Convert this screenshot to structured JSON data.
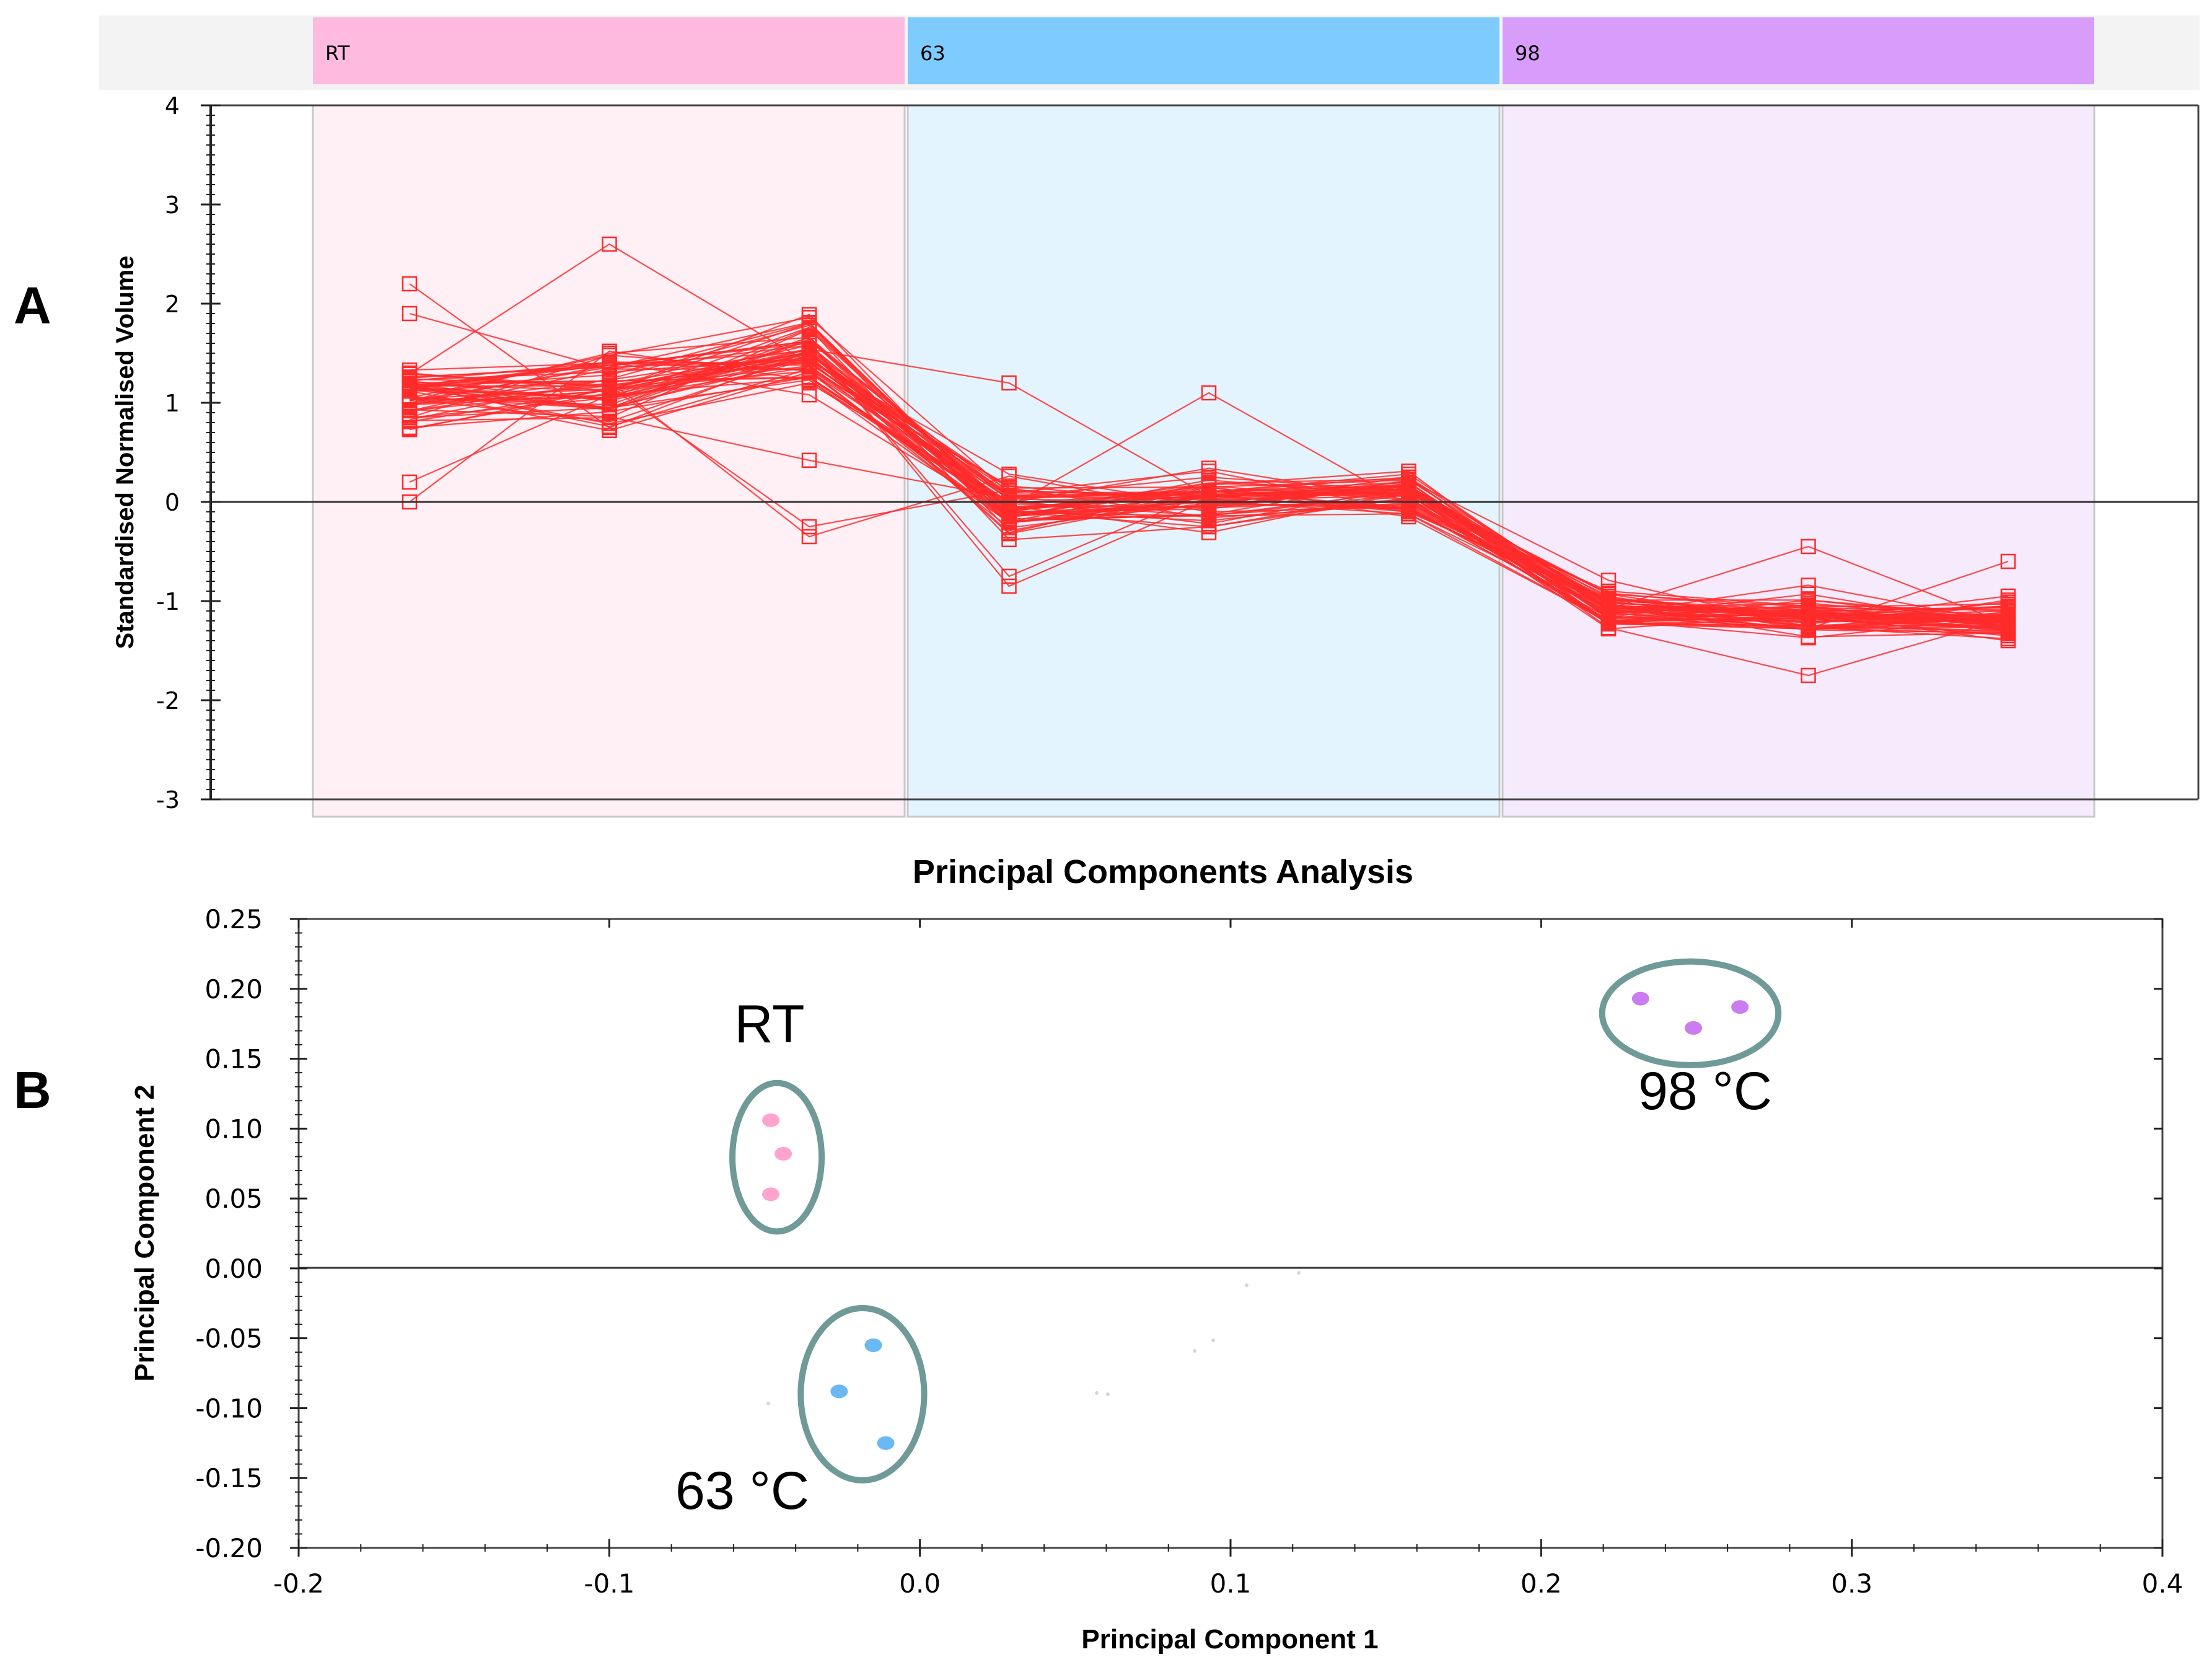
{
  "panels": {
    "a_label": "A",
    "b_label": "B"
  },
  "chart_data": [
    {
      "type": "line",
      "panel": "A",
      "ylabel": "Standardised Normalised Volume",
      "ylim": [
        -3,
        4
      ],
      "yticks": [
        "4",
        "3",
        "2",
        "1",
        "0",
        "-1",
        "-2",
        "-3"
      ],
      "groups": [
        {
          "name": "RT",
          "header_color": "#ffbadf",
          "bg_color": "#fff0f6"
        },
        {
          "name": "63",
          "header_color": "#7ecbff",
          "bg_color": "#e4f4fe"
        },
        {
          "name": "98",
          "header_color": "#d89cfa",
          "bg_color": "#f6ebfd"
        }
      ],
      "line_color": "#ff2a2a",
      "n_samples": 9,
      "n_profiles": 60,
      "sample_means": [
        1.05,
        1.15,
        1.45,
        -0.05,
        0.05,
        0.05,
        -1.1,
        -1.15,
        -1.2
      ],
      "notable_values": {
        "max_sample_2": 2.6,
        "max_sample_1": 2.2,
        "max_sample_4": 1.2,
        "max_sample_5": 1.1
      }
    },
    {
      "type": "scatter",
      "panel": "B",
      "title": "Principal Components Analysis",
      "xlabel": "Principal Component 1",
      "ylabel": "Principal Component 2",
      "xlim": [
        -0.2,
        0.4
      ],
      "ylim": [
        -0.2,
        0.25
      ],
      "xticks": [
        "-0.2",
        "-0.1",
        "0.0",
        "0.1",
        "0.2",
        "0.3",
        "0.4"
      ],
      "yticks": [
        "0.25",
        "0.20",
        "0.15",
        "0.10",
        "0.05",
        "0.00",
        "-0.05",
        "-0.10",
        "-0.15",
        "-0.20"
      ],
      "series": [
        {
          "name": "RT",
          "label": "RT",
          "color": "#ffa3cf",
          "x": [
            -0.048,
            -0.044,
            -0.048
          ],
          "y": [
            0.106,
            0.082,
            0.053
          ]
        },
        {
          "name": "63 °C",
          "label": "63 °C",
          "color": "#6ab8f4",
          "x": [
            -0.015,
            -0.026,
            -0.011
          ],
          "y": [
            -0.055,
            -0.088,
            -0.125
          ]
        },
        {
          "name": "98 °C",
          "label": "98 °C",
          "color": "#c97df0",
          "x": [
            0.232,
            0.264,
            0.249
          ],
          "y": [
            0.193,
            0.187,
            0.172
          ]
        }
      ]
    }
  ]
}
